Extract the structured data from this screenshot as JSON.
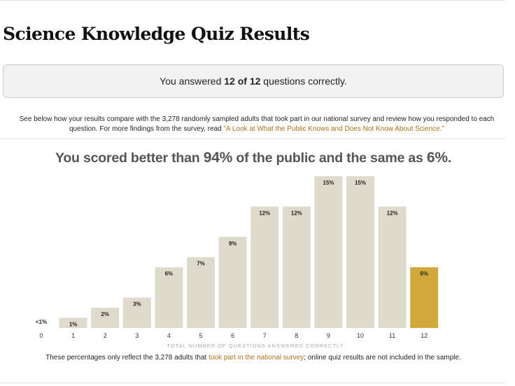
{
  "page": {
    "title": "Science Knowledge Quiz Results",
    "result": {
      "prefix": "You answered ",
      "score": "12 of 12",
      "suffix": " questions correctly."
    },
    "intro": {
      "text": "See below how your results compare with the 3,278 randomly sampled adults that took part in our national survey and review how you responded to each question. For more findings from the survey, read ",
      "link": "\"A Look at What the Public Knows and Does Not Know About Science.\""
    },
    "headline": {
      "p1": "You scored better than ",
      "v1": "94%",
      "p2": " of the public and the same as ",
      "v2": "6%",
      "p3": "."
    },
    "footnote": {
      "prefix": "These percentages only reflect the 3,278 adults that ",
      "link": "took part in the national survey",
      "suffix": "; online quiz results are not included in the sample."
    }
  },
  "chart_data": {
    "type": "bar",
    "categories": [
      "0",
      "1",
      "2",
      "3",
      "4",
      "5",
      "6",
      "7",
      "8",
      "9",
      "10",
      "11",
      "12"
    ],
    "values": [
      0.4,
      1,
      2,
      3,
      6,
      7,
      9,
      12,
      12,
      15,
      15,
      12,
      6
    ],
    "labels": [
      "<1%",
      "1%",
      "2%",
      "3%",
      "6%",
      "7%",
      "9%",
      "12%",
      "12%",
      "15%",
      "15%",
      "12%",
      "6%"
    ],
    "highlight_index": 12,
    "xlabel": "TOTAL NUMBER OF QUESTIONS ANSWERED CORRECTLY",
    "ylabel": "",
    "ylim": [
      0,
      15
    ],
    "grid": false,
    "colors": {
      "bar": "#dedbcc",
      "highlight": "#d1a83a"
    }
  }
}
